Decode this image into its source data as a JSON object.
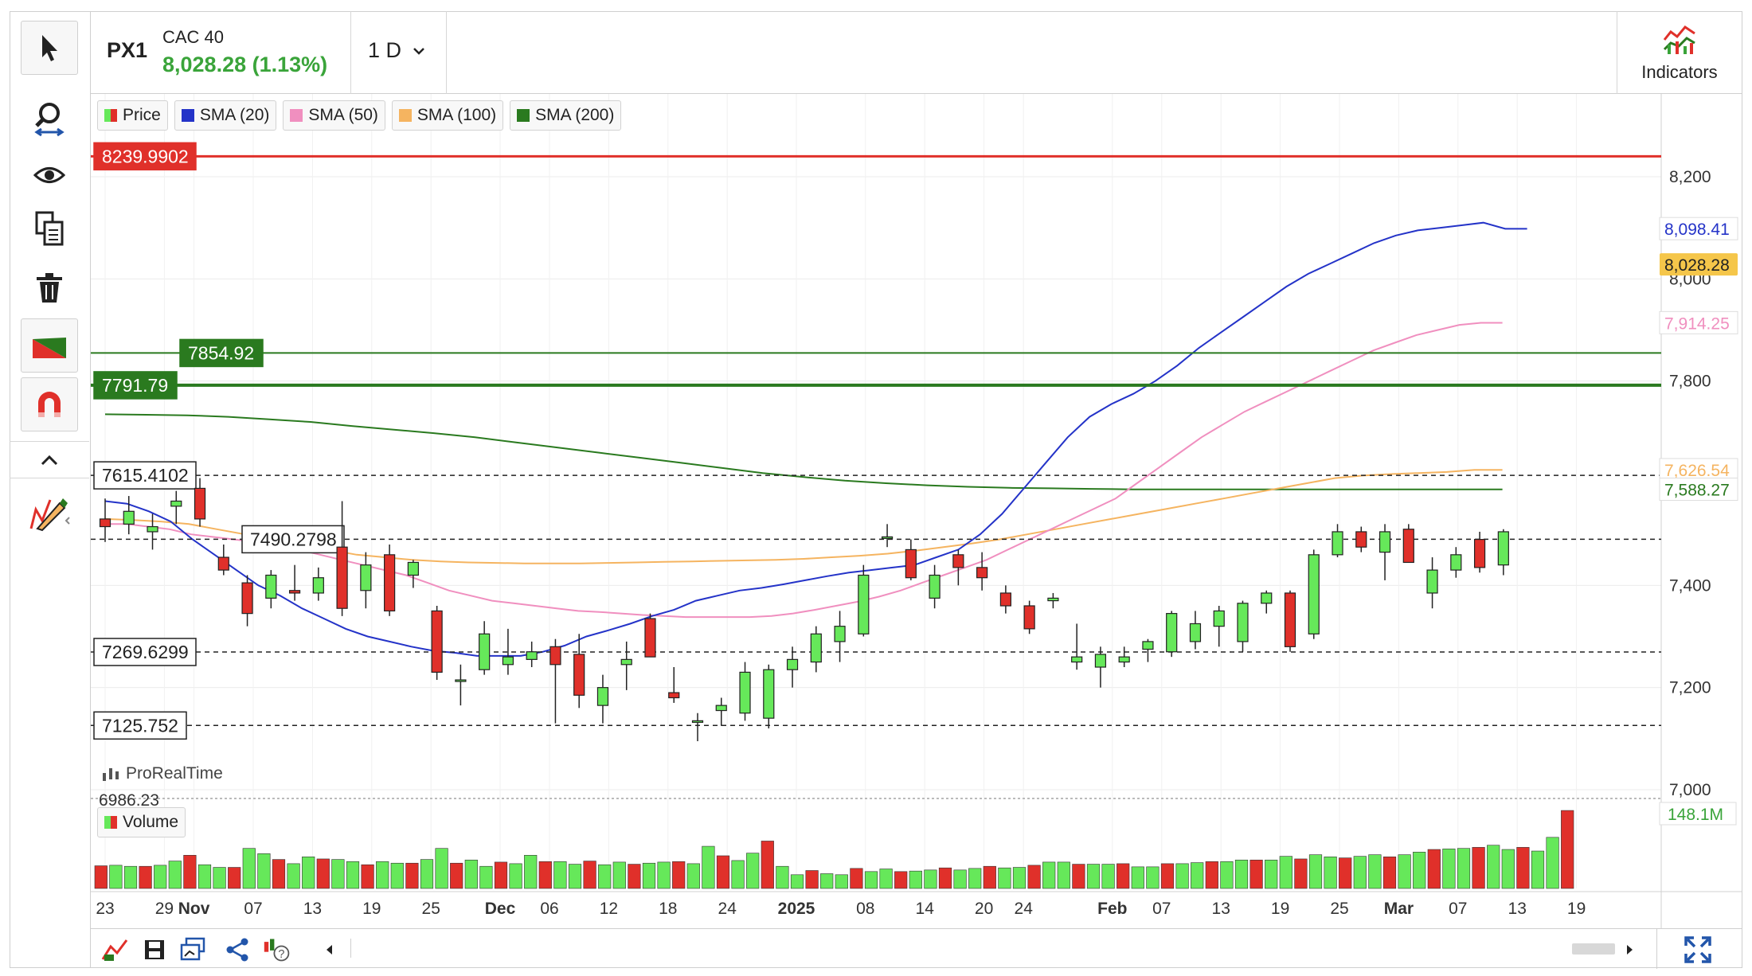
{
  "header": {
    "symbol": "PX1",
    "index_name": "CAC 40",
    "last_price": "8,028.28 (1.13%)",
    "timeframe": "1 D",
    "indicators_label": "Indicators"
  },
  "legend": {
    "items": [
      {
        "label": "Price",
        "color": "#3aa43a"
      },
      {
        "label": "SMA (20)",
        "color": "#2433c8"
      },
      {
        "label": "SMA (50)",
        "color": "#f08fbf"
      },
      {
        "label": "SMA (100)",
        "color": "#f5b460"
      },
      {
        "label": "SMA (200)",
        "color": "#2a7a1f"
      }
    ],
    "volume_label": "Volume"
  },
  "branding": "ProRealTime",
  "colors": {
    "up": "#66e85a",
    "down": "#e0302a",
    "sma20": "#2433c8",
    "sma50": "#f08fbf",
    "sma100": "#f5b460",
    "sma200": "#2a7a1f",
    "resistance": "#e0302a",
    "support": "#2a7a1f"
  },
  "chart_data": {
    "type": "candlestick",
    "ylim": [
      6986.23,
      8300
    ],
    "y_ticks": [
      {
        "value": 7000,
        "label": "7,000"
      },
      {
        "value": 7200,
        "label": "7,200"
      },
      {
        "value": 7400,
        "label": "7,400"
      },
      {
        "value": 7800,
        "label": "7,800"
      },
      {
        "value": 8000,
        "label": "8,000"
      },
      {
        "value": 8200,
        "label": "8,200"
      }
    ],
    "partial_bottom_label": "6986.23",
    "x_labels": [
      {
        "label": "23",
        "bold": false,
        "day": 0
      },
      {
        "label": "29",
        "bold": false,
        "day": 6
      },
      {
        "label": "Nov",
        "bold": true,
        "day": 9
      },
      {
        "label": "07",
        "bold": false,
        "day": 15
      },
      {
        "label": "13",
        "bold": false,
        "day": 21
      },
      {
        "label": "19",
        "bold": false,
        "day": 27
      },
      {
        "label": "25",
        "bold": false,
        "day": 33
      },
      {
        "label": "Dec",
        "bold": true,
        "day": 40
      },
      {
        "label": "06",
        "bold": false,
        "day": 45
      },
      {
        "label": "12",
        "bold": false,
        "day": 51
      },
      {
        "label": "18",
        "bold": false,
        "day": 57
      },
      {
        "label": "24",
        "bold": false,
        "day": 63
      },
      {
        "label": "2025",
        "bold": true,
        "day": 70
      },
      {
        "label": "08",
        "bold": false,
        "day": 77
      },
      {
        "label": "14",
        "bold": false,
        "day": 83
      },
      {
        "label": "20",
        "bold": false,
        "day": 89
      },
      {
        "label": "24",
        "bold": false,
        "day": 93
      },
      {
        "label": "Feb",
        "bold": true,
        "day": 102
      },
      {
        "label": "07",
        "bold": false,
        "day": 107
      },
      {
        "label": "13",
        "bold": false,
        "day": 113
      },
      {
        "label": "19",
        "bold": false,
        "day": 119
      },
      {
        "label": "25",
        "bold": false,
        "day": 125
      },
      {
        "label": "Mar",
        "bold": true,
        "day": 131
      },
      {
        "label": "07",
        "bold": false,
        "day": 137
      },
      {
        "label": "13",
        "bold": false,
        "day": 143
      },
      {
        "label": "19",
        "bold": false,
        "day": 149
      }
    ],
    "levels": [
      {
        "value": 8239.9902,
        "label": "8239.9902",
        "style": "resistance"
      },
      {
        "value": 7854.92,
        "label": "7854.92",
        "style": "support"
      },
      {
        "value": 7791.79,
        "label": "7791.79",
        "style": "support-strong"
      },
      {
        "value": 7615.4102,
        "label": "7615.4102",
        "style": "dashed"
      },
      {
        "value": 7490.2798,
        "label": "7490.2798",
        "style": "dashed"
      },
      {
        "value": 7269.6299,
        "label": "7269.6299",
        "style": "dashed"
      },
      {
        "value": 7125.752,
        "label": "7125.752",
        "style": "dashed"
      }
    ],
    "price_tags": [
      {
        "value": 8098.41,
        "label": "8,098.41",
        "series": "sma20"
      },
      {
        "value": 8028.28,
        "label": "8,028.28",
        "series": "last"
      },
      {
        "value": 7914.25,
        "label": "7,914.25",
        "series": "sma50"
      },
      {
        "value": 7626.54,
        "label": "7,626.54",
        "series": "sma100"
      },
      {
        "value": 7588.27,
        "label": "7,588.27",
        "series": "sma200"
      }
    ],
    "volume_tag": "148.1M",
    "volume_max": 148.1,
    "candles": [
      {
        "x": 0,
        "o": 7530,
        "h": 7570,
        "l": 7485,
        "c": 7515
      },
      {
        "x": 1,
        "o": 7520,
        "h": 7575,
        "l": 7500,
        "c": 7545
      },
      {
        "x": 2,
        "o": 7505,
        "h": 7540,
        "l": 7470,
        "c": 7515
      },
      {
        "x": 3,
        "o": 7555,
        "h": 7585,
        "l": 7520,
        "c": 7565
      },
      {
        "x": 4,
        "o": 7590,
        "h": 7610,
        "l": 7515,
        "c": 7530
      },
      {
        "x": 5,
        "o": 7455,
        "h": 7480,
        "l": 7420,
        "c": 7430
      },
      {
        "x": 6,
        "o": 7405,
        "h": 7420,
        "l": 7320,
        "c": 7345
      },
      {
        "x": 7,
        "o": 7375,
        "h": 7430,
        "l": 7355,
        "c": 7420
      },
      {
        "x": 8,
        "o": 7390,
        "h": 7440,
        "l": 7370,
        "c": 7385
      },
      {
        "x": 9,
        "o": 7385,
        "h": 7435,
        "l": 7370,
        "c": 7415
      },
      {
        "x": 10,
        "o": 7475,
        "h": 7565,
        "l": 7340,
        "c": 7355
      },
      {
        "x": 11,
        "o": 7390,
        "h": 7465,
        "l": 7355,
        "c": 7440
      },
      {
        "x": 12,
        "o": 7460,
        "h": 7480,
        "l": 7340,
        "c": 7350
      },
      {
        "x": 13,
        "o": 7420,
        "h": 7450,
        "l": 7395,
        "c": 7445
      },
      {
        "x": 14,
        "o": 7350,
        "h": 7360,
        "l": 7215,
        "c": 7230
      },
      {
        "x": 15,
        "o": 7215,
        "h": 7245,
        "l": 7165,
        "c": 7215
      },
      {
        "x": 16,
        "o": 7235,
        "h": 7330,
        "l": 7225,
        "c": 7305
      },
      {
        "x": 17,
        "o": 7245,
        "h": 7315,
        "l": 7225,
        "c": 7260
      },
      {
        "x": 18,
        "o": 7255,
        "h": 7290,
        "l": 7240,
        "c": 7270
      },
      {
        "x": 19,
        "o": 7280,
        "h": 7295,
        "l": 7130,
        "c": 7245
      },
      {
        "x": 20,
        "o": 7265,
        "h": 7305,
        "l": 7160,
        "c": 7185
      },
      {
        "x": 21,
        "o": 7165,
        "h": 7225,
        "l": 7130,
        "c": 7200
      },
      {
        "x": 22,
        "o": 7245,
        "h": 7290,
        "l": 7195,
        "c": 7255
      },
      {
        "x": 23,
        "o": 7335,
        "h": 7345,
        "l": 7260,
        "c": 7260
      },
      {
        "x": 24,
        "o": 7190,
        "h": 7240,
        "l": 7170,
        "c": 7180
      },
      {
        "x": 25,
        "o": 7135,
        "h": 7150,
        "l": 7095,
        "c": 7135
      },
      {
        "x": 26,
        "o": 7155,
        "h": 7180,
        "l": 7125,
        "c": 7165
      },
      {
        "x": 27,
        "o": 7150,
        "h": 7250,
        "l": 7135,
        "c": 7230
      },
      {
        "x": 28,
        "o": 7140,
        "h": 7245,
        "l": 7120,
        "c": 7235
      },
      {
        "x": 29,
        "o": 7235,
        "h": 7280,
        "l": 7200,
        "c": 7255
      },
      {
        "x": 30,
        "o": 7250,
        "h": 7320,
        "l": 7230,
        "c": 7305
      },
      {
        "x": 31,
        "o": 7290,
        "h": 7350,
        "l": 7250,
        "c": 7320
      },
      {
        "x": 32,
        "o": 7305,
        "h": 7440,
        "l": 7300,
        "c": 7420
      },
      {
        "x": 33,
        "o": 7495,
        "h": 7520,
        "l": 7475,
        "c": 7495
      },
      {
        "x": 34,
        "o": 7470,
        "h": 7490,
        "l": 7410,
        "c": 7415
      },
      {
        "x": 35,
        "o": 7375,
        "h": 7440,
        "l": 7355,
        "c": 7420
      },
      {
        "x": 36,
        "o": 7460,
        "h": 7470,
        "l": 7400,
        "c": 7435
      },
      {
        "x": 37,
        "o": 7435,
        "h": 7465,
        "l": 7390,
        "c": 7415
      },
      {
        "x": 38,
        "o": 7385,
        "h": 7400,
        "l": 7345,
        "c": 7360
      },
      {
        "x": 39,
        "o": 7360,
        "h": 7370,
        "l": 7305,
        "c": 7315
      },
      {
        "x": 40,
        "o": 7370,
        "h": 7385,
        "l": 7355,
        "c": 7375
      },
      {
        "x": 41,
        "o": 7250,
        "h": 7325,
        "l": 7235,
        "c": 7260
      },
      {
        "x": 42,
        "o": 7240,
        "h": 7280,
        "l": 7200,
        "c": 7265
      },
      {
        "x": 43,
        "o": 7250,
        "h": 7280,
        "l": 7240,
        "c": 7260
      },
      {
        "x": 44,
        "o": 7275,
        "h": 7295,
        "l": 7250,
        "c": 7290
      },
      {
        "x": 45,
        "o": 7270,
        "h": 7350,
        "l": 7260,
        "c": 7345
      },
      {
        "x": 46,
        "o": 7290,
        "h": 7350,
        "l": 7275,
        "c": 7325
      },
      {
        "x": 47,
        "o": 7320,
        "h": 7360,
        "l": 7280,
        "c": 7350
      },
      {
        "x": 48,
        "o": 7290,
        "h": 7370,
        "l": 7270,
        "c": 7365
      },
      {
        "x": 49,
        "o": 7365,
        "h": 7390,
        "l": 7345,
        "c": 7385
      },
      {
        "x": 50,
        "o": 7385,
        "h": 7390,
        "l": 7270,
        "c": 7280
      },
      {
        "x": 51,
        "o": 7305,
        "h": 7470,
        "l": 7295,
        "c": 7460
      },
      {
        "x": 52,
        "o": 7460,
        "h": 7520,
        "l": 7455,
        "c": 7505
      },
      {
        "x": 53,
        "o": 7505,
        "h": 7515,
        "l": 7465,
        "c": 7475
      },
      {
        "x": 54,
        "o": 7465,
        "h": 7520,
        "l": 7410,
        "c": 7505
      },
      {
        "x": 55,
        "o": 7510,
        "h": 7520,
        "l": 7445,
        "c": 7445
      },
      {
        "x": 56,
        "o": 7385,
        "h": 7455,
        "l": 7355,
        "c": 7430
      },
      {
        "x": 57,
        "o": 7430,
        "h": 7475,
        "l": 7415,
        "c": 7460
      },
      {
        "x": 58,
        "o": 7490,
        "h": 7505,
        "l": 7425,
        "c": 7435
      },
      {
        "x": 59,
        "o": 7440,
        "h": 7510,
        "l": 7420,
        "c": 7505
      }
    ],
    "volume": [
      43,
      44,
      42,
      42,
      44,
      52,
      63,
      45,
      40,
      40,
      76,
      66,
      55,
      47,
      60,
      56,
      55,
      51,
      45,
      51,
      48,
      48,
      55,
      76,
      48,
      54,
      42,
      50,
      47,
      63,
      51,
      51,
      46,
      52,
      45,
      50,
      46,
      48,
      50,
      51,
      47,
      80,
      62,
      53,
      67,
      90,
      42,
      26,
      34,
      28,
      26,
      38,
      32,
      37,
      32,
      33,
      35,
      39,
      35,
      38,
      42,
      39,
      40,
      44,
      50,
      50,
      46,
      46,
      46,
      47,
      41,
      41,
      47,
      47,
      49,
      51,
      51,
      54,
      54,
      54,
      61,
      56,
      64,
      60,
      58,
      61,
      64,
      60,
      64,
      69,
      74,
      75,
      76,
      78,
      82,
      74,
      78,
      71,
      97,
      148
    ],
    "sma20_from": 0,
    "sma20": [
      7565,
      7560,
      7545,
      7525,
      7490,
      7460,
      7430,
      7400,
      7380,
      7355,
      7335,
      7315,
      7300,
      7290,
      7280,
      7272,
      7268,
      7262,
      7262,
      7262,
      7270,
      7282,
      7300,
      7312,
      7325,
      7340,
      7352,
      7370,
      7380,
      7390,
      7395,
      7402,
      7410,
      7418,
      7425,
      7430,
      7435,
      7440,
      7455,
      7470,
      7500,
      7540,
      7590,
      7640,
      7690,
      7730,
      7755,
      7775,
      7800,
      7830,
      7865,
      7895,
      7925,
      7955,
      7985,
      8010,
      8030,
      8050,
      8070,
      8085,
      8095,
      8100,
      8105,
      8110,
      8098,
      8098
    ],
    "sma50_from": 0,
    "sma50": [
      7520,
      7520,
      7515,
      7510,
      7500,
      7495,
      7490,
      7485,
      7480,
      7470,
      7460,
      7450,
      7440,
      7430,
      7420,
      7405,
      7390,
      7380,
      7370,
      7365,
      7360,
      7355,
      7350,
      7348,
      7345,
      7342,
      7340,
      7338,
      7338,
      7338,
      7338,
      7340,
      7345,
      7352,
      7360,
      7368,
      7378,
      7390,
      7405,
      7420,
      7435,
      7450,
      7470,
      7490,
      7510,
      7530,
      7550,
      7570,
      7600,
      7630,
      7660,
      7690,
      7715,
      7740,
      7760,
      7780,
      7800,
      7820,
      7840,
      7860,
      7875,
      7890,
      7900,
      7910,
      7914,
      7914
    ],
    "sma100_from": 0,
    "sma100": [
      7530,
      7528,
      7525,
      7520,
      7510,
      7500,
      7490,
      7480,
      7470,
      7460,
      7455,
      7450,
      7447,
      7445,
      7444,
      7443,
      7443,
      7443,
      7444,
      7445,
      7446,
      7447,
      7448,
      7449,
      7450,
      7452,
      7455,
      7458,
      7462,
      7468,
      7475,
      7482,
      7490,
      7500,
      7510,
      7520,
      7530,
      7540,
      7550,
      7560,
      7570,
      7580,
      7590,
      7600,
      7610,
      7615,
      7618,
      7620,
      7622,
      7626,
      7626
    ],
    "sma200_from": 0,
    "sma200": [
      7735,
      7734,
      7733,
      7730,
      7725,
      7720,
      7712,
      7705,
      7698,
      7690,
      7680,
      7670,
      7660,
      7650,
      7640,
      7630,
      7620,
      7612,
      7605,
      7600,
      7596,
      7593,
      7591,
      7590,
      7589,
      7588,
      7588,
      7588,
      7588,
      7588,
      7588,
      7588,
      7588,
      7588,
      7588
    ]
  }
}
